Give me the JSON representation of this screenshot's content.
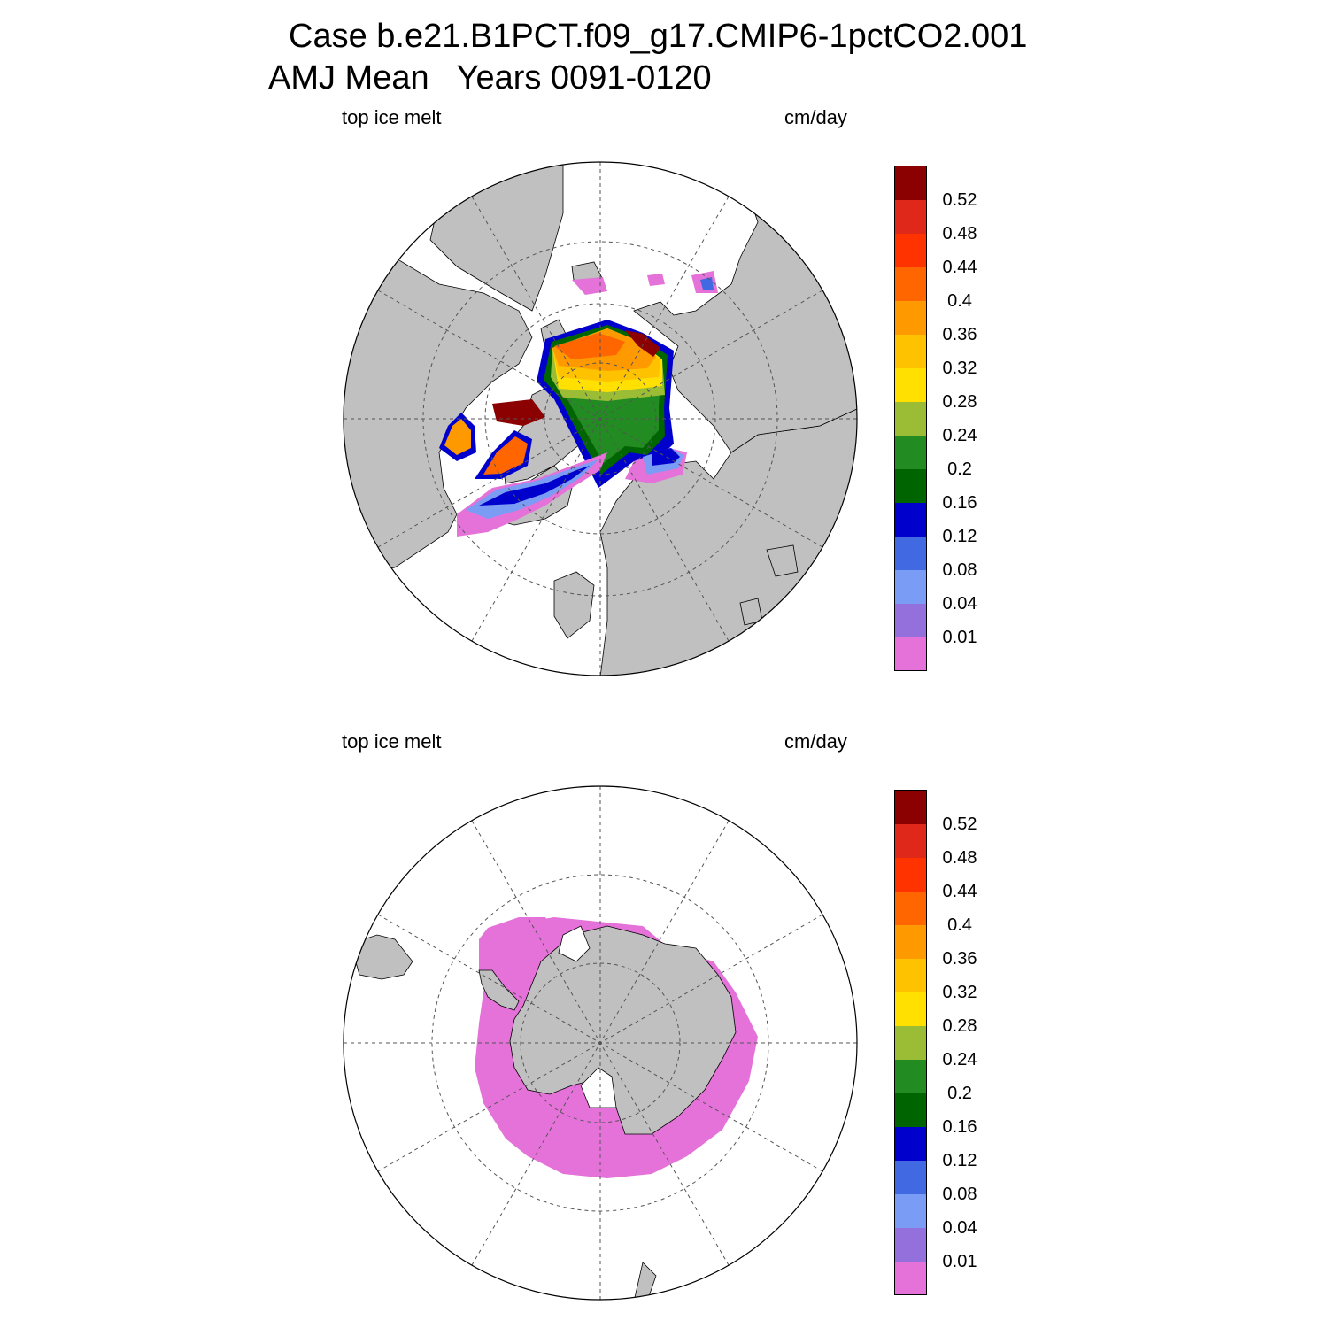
{
  "title": {
    "line1": "Case b.e21.B1PCT.f09_g17.CMIP6-1pctCO2.001",
    "line2": "AMJ Mean   Years 0091-0120"
  },
  "panels": [
    {
      "id": "north",
      "hemisphere": "Northern Hemisphere polar stereographic",
      "left_label": "top ice melt",
      "right_label": "cm/day"
    },
    {
      "id": "south",
      "hemisphere": "Southern Hemisphere polar stereographic",
      "left_label": "top ice melt",
      "right_label": "cm/day"
    }
  ],
  "colorbar": {
    "colors": [
      "#e472d9",
      "#9370db",
      "#7a9cf5",
      "#4169e1",
      "#0000cd",
      "#006400",
      "#228b22",
      "#9abd35",
      "#ffe000",
      "#ffc200",
      "#ff9900",
      "#ff6600",
      "#ff3300",
      "#e0281a",
      "#8b0000"
    ],
    "labels": [
      "0.01",
      "0.04",
      "0.08",
      "0.12",
      "0.16",
      "0.2",
      "0.24",
      "0.28",
      "0.32",
      "0.36",
      "0.4",
      "0.44",
      "0.48",
      "0.52"
    ]
  },
  "colors": {
    "land": "#c0c0c0",
    "ocean": "#ffffff",
    "grid": "#555555",
    "south_melt": "#e472d9"
  }
}
